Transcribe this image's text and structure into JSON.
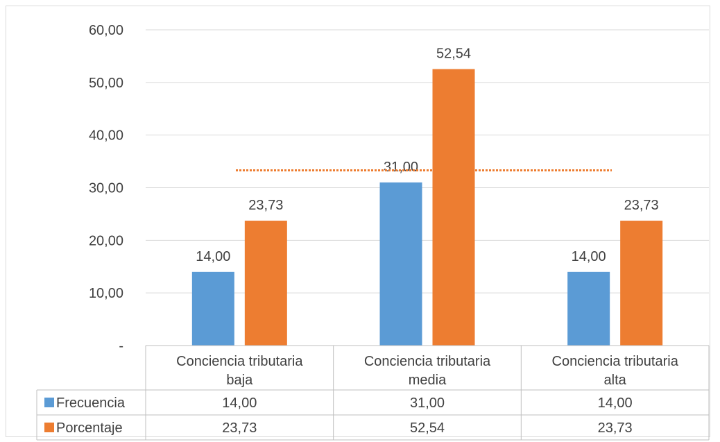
{
  "chart_data": {
    "type": "bar",
    "title": "",
    "xlabel": "",
    "ylabel": "",
    "categories": [
      [
        "Conciencia tributaria",
        "baja"
      ],
      [
        "Conciencia tributaria",
        "media"
      ],
      [
        "Conciencia tributaria",
        "alta"
      ]
    ],
    "series": [
      {
        "name": "Frecuencia",
        "color": "#5b9bd5",
        "values": [
          14.0,
          31.0,
          14.0
        ],
        "labels": [
          "14,00",
          "31,00",
          "14,00"
        ]
      },
      {
        "name": "Porcentaje",
        "color": "#ed7d31",
        "values": [
          23.73,
          52.54,
          23.73
        ],
        "labels": [
          "23,73",
          "52,54",
          "23,73"
        ]
      }
    ],
    "ylim": [
      0,
      60
    ],
    "yticks": [
      {
        "value": 0,
        "label": "-"
      },
      {
        "value": 10,
        "label": "10,00"
      },
      {
        "value": 20,
        "label": "20,00"
      },
      {
        "value": 30,
        "label": "30,00"
      },
      {
        "value": 40,
        "label": "40,00"
      },
      {
        "value": 50,
        "label": "50,00"
      },
      {
        "value": 60,
        "label": "60,00"
      }
    ],
    "reference_line": {
      "value": 33.3,
      "color": "#ed7d31",
      "style": "dotted"
    },
    "grid": true,
    "legend": "data-table",
    "data_table": true
  }
}
